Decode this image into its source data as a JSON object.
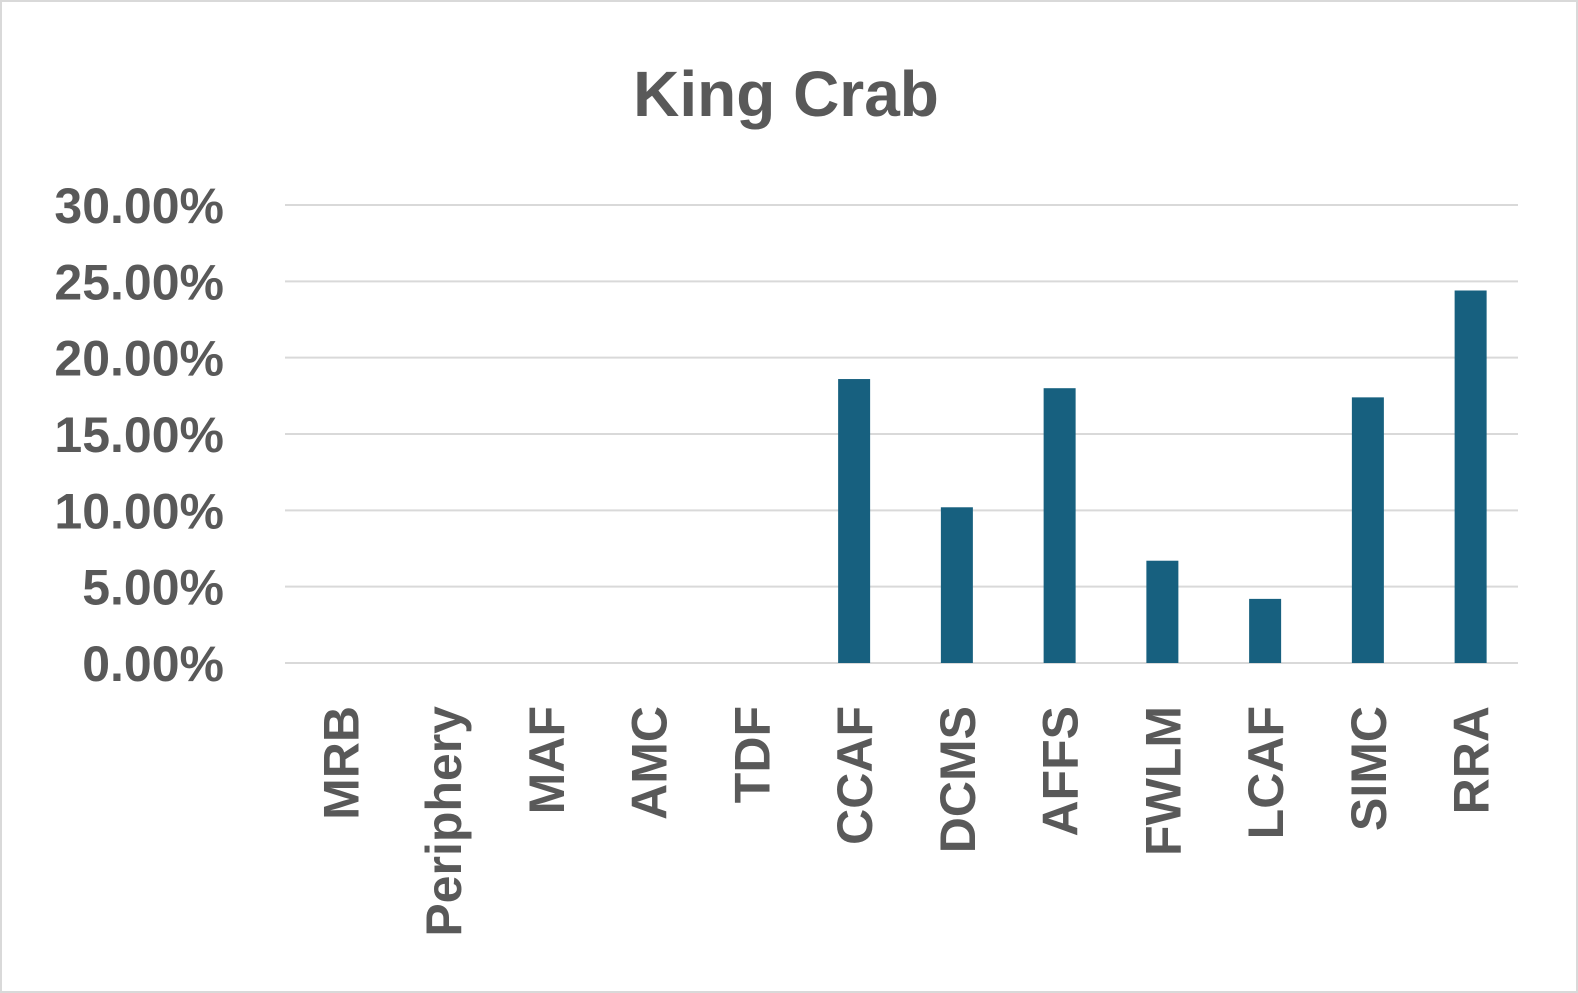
{
  "chart_data": {
    "type": "bar",
    "title": "King Crab",
    "xlabel": "",
    "ylabel": "",
    "categories": [
      "MRB",
      "Periphery",
      "MAF",
      "AMC",
      "TDF",
      "CCAF",
      "DCMS",
      "AFFS",
      "FWLM",
      "LCAF",
      "SIMC",
      "RRA"
    ],
    "values": [
      0,
      0,
      0,
      0,
      0,
      18.6,
      10.2,
      18.0,
      6.7,
      4.2,
      17.4,
      24.4
    ],
    "ylim": [
      0,
      30
    ],
    "yticks": [
      {
        "value": 0,
        "label": "0.00%"
      },
      {
        "value": 5,
        "label": "5.00%"
      },
      {
        "value": 10,
        "label": "10.00%"
      },
      {
        "value": 15,
        "label": "15.00%"
      },
      {
        "value": 20,
        "label": "20.00%"
      },
      {
        "value": 25,
        "label": "25.00%"
      },
      {
        "value": 30,
        "label": "30.00%"
      }
    ],
    "grid": true,
    "legend": "none",
    "bar_color": "#17607f"
  }
}
